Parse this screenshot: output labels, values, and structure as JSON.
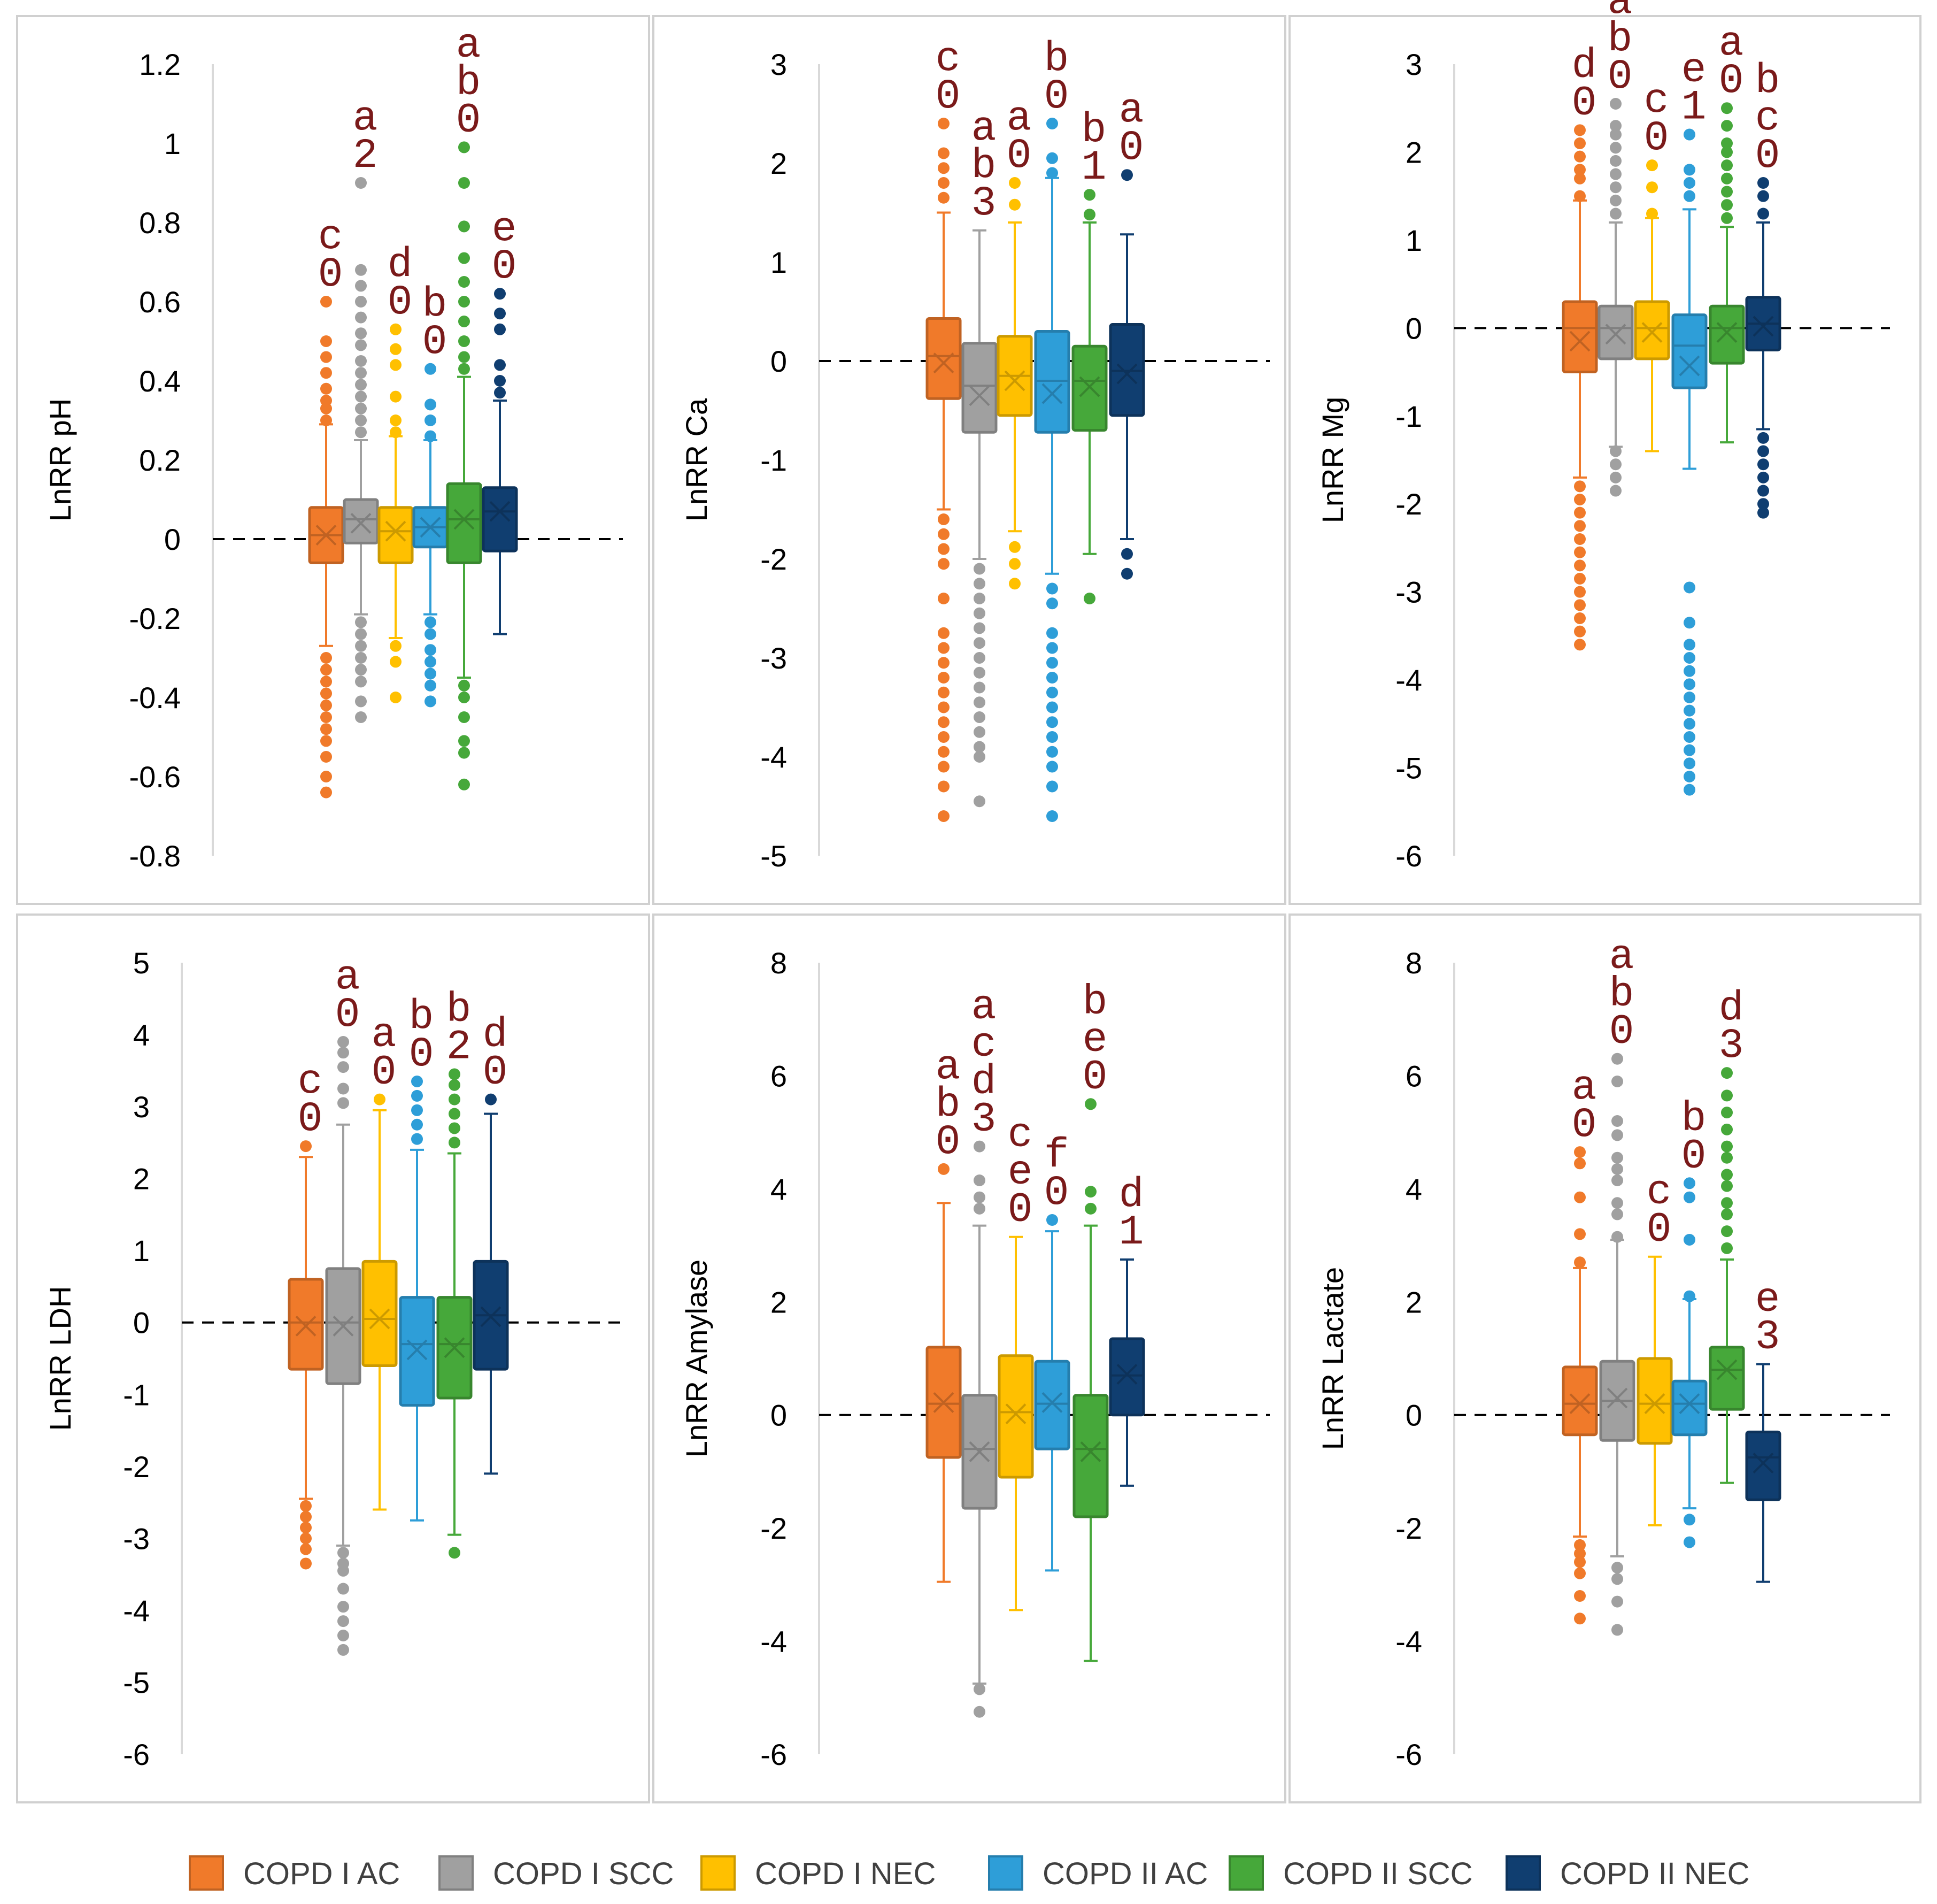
{
  "colors": {
    "COPD I AC": "#f07a2a",
    "COPD I SCC": "#a0a0a0",
    "COPD I NEC": "#ffc000",
    "COPD II AC": "#2e9ed8",
    "COPD II SCC": "#46a83a",
    "COPD II NEC": "#103e70",
    "letters": "#7a1a1a",
    "grid": "#d9d9d9",
    "panel_border": "#d0d0d0",
    "axis_text": "#000000"
  },
  "legend": {
    "position": "bottom-center",
    "entries": [
      "COPD I AC",
      "COPD I SCC",
      "COPD I NEC",
      "COPD II AC",
      "COPD II SCC",
      "COPD II NEC"
    ]
  },
  "chart_data": [
    {
      "type": "boxplot",
      "ylabel": "LnRR  pH",
      "ylim": [
        -0.8,
        1.2
      ],
      "yticks": [
        1.2,
        1,
        0.8,
        0.6,
        0.4,
        0.2,
        0,
        -0.2,
        -0.4,
        -0.6,
        -0.8
      ],
      "reference_line": 0,
      "series": [
        {
          "name": "COPD I AC",
          "q1": -0.06,
          "median": 0.01,
          "q3": 0.08,
          "mean": 0.01,
          "whisker_low": -0.27,
          "whisker_high": 0.29,
          "outliers": [
            0.3,
            0.33,
            0.35,
            0.38,
            0.42,
            0.46,
            0.5,
            0.6,
            -0.3,
            -0.33,
            -0.36,
            -0.39,
            -0.42,
            -0.45,
            -0.48,
            -0.51,
            -0.55,
            -0.6,
            -0.64
          ],
          "letters": "c\n0"
        },
        {
          "name": "COPD I SCC",
          "q1": -0.01,
          "median": 0.05,
          "q3": 0.1,
          "mean": 0.04,
          "whisker_low": -0.19,
          "whisker_high": 0.25,
          "outliers": [
            0.27,
            0.3,
            0.33,
            0.36,
            0.39,
            0.42,
            0.45,
            0.49,
            0.52,
            0.56,
            0.6,
            0.64,
            0.68,
            0.9,
            -0.21,
            -0.24,
            -0.27,
            -0.3,
            -0.33,
            -0.36,
            -0.41,
            -0.45
          ],
          "letters": "a\n2"
        },
        {
          "name": "COPD I NEC",
          "q1": -0.06,
          "median": 0.02,
          "q3": 0.08,
          "mean": 0.02,
          "whisker_low": -0.25,
          "whisker_high": 0.26,
          "outliers": [
            0.27,
            0.3,
            0.36,
            0.44,
            0.48,
            0.53,
            -0.27,
            -0.31,
            -0.4
          ],
          "letters": "d\n0"
        },
        {
          "name": "COPD II AC",
          "q1": -0.02,
          "median": 0.03,
          "q3": 0.08,
          "mean": 0.03,
          "whisker_low": -0.19,
          "whisker_high": 0.25,
          "outliers": [
            0.26,
            0.3,
            0.34,
            0.43,
            -0.21,
            -0.24,
            -0.28,
            -0.31,
            -0.34,
            -0.37,
            -0.41
          ],
          "letters": "b\n0"
        },
        {
          "name": "COPD II SCC",
          "q1": -0.06,
          "median": 0.05,
          "q3": 0.14,
          "mean": 0.05,
          "whisker_low": -0.35,
          "whisker_high": 0.41,
          "outliers": [
            0.43,
            0.46,
            0.5,
            0.55,
            0.6,
            0.65,
            0.71,
            0.79,
            0.9,
            0.99,
            -0.37,
            -0.4,
            -0.45,
            -0.51,
            -0.54,
            -0.62
          ],
          "letters": "a\nb\n0"
        },
        {
          "name": "COPD II NEC",
          "q1": -0.03,
          "median": 0.07,
          "q3": 0.13,
          "mean": 0.07,
          "whisker_low": -0.24,
          "whisker_high": 0.35,
          "outliers": [
            0.37,
            0.4,
            0.44,
            0.53,
            0.57,
            0.62
          ],
          "letters": "e\n0"
        }
      ]
    },
    {
      "type": "boxplot",
      "ylabel": "LnRR  Ca",
      "ylim": [
        -5,
        3
      ],
      "yticks": [
        3,
        2,
        1,
        0,
        -1,
        -2,
        -3,
        -4,
        -5
      ],
      "reference_line": 0,
      "series": [
        {
          "name": "COPD I AC",
          "q1": -0.38,
          "median": 0.05,
          "q3": 0.43,
          "mean": -0.02,
          "whisker_low": -1.5,
          "whisker_high": 1.5,
          "outliers": [
            1.65,
            1.8,
            1.95,
            2.1,
            2.4,
            -1.6,
            -1.75,
            -1.9,
            -2.05,
            -2.4,
            -2.75,
            -2.9,
            -3.05,
            -3.2,
            -3.35,
            -3.5,
            -3.65,
            -3.8,
            -3.95,
            -4.1,
            -4.3,
            -4.6
          ],
          "letters": "c\n0"
        },
        {
          "name": "COPD I SCC",
          "q1": -0.72,
          "median": -0.25,
          "q3": 0.18,
          "mean": -0.35,
          "whisker_low": -2.0,
          "whisker_high": 1.32,
          "outliers": [
            -2.1,
            -2.25,
            -2.4,
            -2.55,
            -2.7,
            -2.85,
            -3.0,
            -3.15,
            -3.3,
            -3.45,
            -3.6,
            -3.75,
            -3.9,
            -4.0,
            -4.45
          ],
          "letters": "a\nb\n3"
        },
        {
          "name": "COPD I NEC",
          "q1": -0.55,
          "median": -0.15,
          "q3": 0.25,
          "mean": -0.2,
          "whisker_low": -1.72,
          "whisker_high": 1.4,
          "outliers": [
            1.58,
            1.8,
            -1.88,
            -2.05,
            -2.25
          ],
          "letters": "a\n0"
        },
        {
          "name": "COPD II AC",
          "q1": -0.72,
          "median": -0.2,
          "q3": 0.3,
          "mean": -0.33,
          "whisker_low": -2.15,
          "whisker_high": 1.85,
          "outliers": [
            1.9,
            2.05,
            2.4,
            -2.3,
            -2.45,
            -2.75,
            -2.9,
            -3.05,
            -3.2,
            -3.35,
            -3.5,
            -3.65,
            -3.8,
            -3.95,
            -4.1,
            -4.3,
            -4.6
          ],
          "letters": "b\n0"
        },
        {
          "name": "COPD II SCC",
          "q1": -0.7,
          "median": -0.2,
          "q3": 0.15,
          "mean": -0.26,
          "whisker_low": -1.95,
          "whisker_high": 1.4,
          "outliers": [
            1.48,
            1.68,
            -2.4
          ],
          "letters": "b\n1"
        },
        {
          "name": "COPD II NEC",
          "q1": -0.55,
          "median": -0.1,
          "q3": 0.37,
          "mean": -0.13,
          "whisker_low": -1.8,
          "whisker_high": 1.28,
          "outliers": [
            1.88,
            -1.95,
            -2.15
          ],
          "letters": "a\n0"
        }
      ]
    },
    {
      "type": "boxplot",
      "ylabel": "LnRR  Mg",
      "ylim": [
        -6,
        3
      ],
      "yticks": [
        3,
        2,
        1,
        0,
        -1,
        -2,
        -3,
        -4,
        -5,
        -6
      ],
      "reference_line": 0,
      "series": [
        {
          "name": "COPD I AC",
          "q1": -0.5,
          "median": 0.0,
          "q3": 0.3,
          "mean": -0.15,
          "whisker_low": -1.7,
          "whisker_high": 1.45,
          "outliers": [
            1.5,
            1.7,
            1.8,
            1.95,
            2.1,
            2.25,
            -1.8,
            -1.95,
            -2.1,
            -2.25,
            -2.4,
            -2.55,
            -2.7,
            -2.85,
            -3.0,
            -3.15,
            -3.3,
            -3.45,
            -3.6
          ],
          "letters": "d\n0"
        },
        {
          "name": "COPD I SCC",
          "q1": -0.35,
          "median": 0.0,
          "q3": 0.25,
          "mean": -0.07,
          "whisker_low": -1.35,
          "whisker_high": 1.2,
          "outliers": [
            1.3,
            1.45,
            1.6,
            1.75,
            1.9,
            2.05,
            2.2,
            2.3,
            2.55,
            -1.4,
            -1.55,
            -1.7,
            -1.85
          ],
          "letters": "a\nb\n0"
        },
        {
          "name": "COPD I NEC",
          "q1": -0.35,
          "median": 0.0,
          "q3": 0.3,
          "mean": -0.05,
          "whisker_low": -1.4,
          "whisker_high": 1.25,
          "outliers": [
            1.3,
            1.6,
            1.85
          ],
          "letters": "c\n0"
        },
        {
          "name": "COPD II AC",
          "q1": -0.68,
          "median": -0.2,
          "q3": 0.15,
          "mean": -0.43,
          "whisker_low": -1.6,
          "whisker_high": 1.35,
          "outliers": [
            1.5,
            1.65,
            1.8,
            2.2,
            -2.95,
            -3.35,
            -3.6,
            -3.75,
            -3.9,
            -4.05,
            -4.2,
            -4.35,
            -4.5,
            -4.65,
            -4.8,
            -4.95,
            -5.1,
            -5.25
          ],
          "letters": "e\n1"
        },
        {
          "name": "COPD II SCC",
          "q1": -0.4,
          "median": 0.0,
          "q3": 0.25,
          "mean": -0.05,
          "whisker_low": -1.3,
          "whisker_high": 1.15,
          "outliers": [
            1.25,
            1.4,
            1.55,
            1.7,
            1.85,
            2.0,
            2.1,
            2.3,
            2.5
          ],
          "letters": "a\n0"
        },
        {
          "name": "COPD II NEC",
          "q1": -0.25,
          "median": 0.05,
          "q3": 0.35,
          "mean": 0.02,
          "whisker_low": -1.15,
          "whisker_high": 1.2,
          "outliers": [
            1.3,
            1.5,
            1.65,
            -1.25,
            -1.4,
            -1.55,
            -1.7,
            -1.85,
            -2.0,
            -2.1
          ],
          "letters": "b\nc\n0"
        }
      ]
    },
    {
      "type": "boxplot",
      "ylabel": "LnRR  LDH",
      "ylim": [
        -6,
        5
      ],
      "yticks": [
        5,
        4,
        3,
        2,
        1,
        0,
        -1,
        -2,
        -3,
        -4,
        -5,
        -6
      ],
      "reference_line": 0,
      "series": [
        {
          "name": "COPD I AC",
          "q1": -0.65,
          "median": 0.0,
          "q3": 0.6,
          "mean": -0.05,
          "whisker_low": -2.45,
          "whisker_high": 2.3,
          "outliers": [
            2.45,
            -2.55,
            -2.7,
            -2.85,
            -3.0,
            -3.15,
            -3.35
          ],
          "letters": "c\n0"
        },
        {
          "name": "COPD I SCC",
          "q1": -0.85,
          "median": 0.0,
          "q3": 0.75,
          "mean": -0.05,
          "whisker_low": -3.1,
          "whisker_high": 2.75,
          "outliers": [
            3.05,
            3.25,
            3.55,
            3.75,
            3.9,
            -3.2,
            -3.35,
            -3.45,
            -3.7,
            -3.95,
            -4.15,
            -4.35,
            -4.55
          ],
          "letters": "a\n0"
        },
        {
          "name": "COPD I NEC",
          "q1": -0.6,
          "median": 0.05,
          "q3": 0.85,
          "mean": 0.05,
          "whisker_low": -2.6,
          "whisker_high": 2.95,
          "outliers": [
            3.1
          ],
          "letters": "a\n0"
        },
        {
          "name": "COPD II AC",
          "q1": -1.15,
          "median": -0.3,
          "q3": 0.35,
          "mean": -0.38,
          "whisker_low": -2.75,
          "whisker_high": 2.4,
          "outliers": [
            2.55,
            2.75,
            2.95,
            3.15,
            3.35
          ],
          "letters": "b\n0"
        },
        {
          "name": "COPD II SCC",
          "q1": -1.05,
          "median": -0.3,
          "q3": 0.35,
          "mean": -0.35,
          "whisker_low": -2.95,
          "whisker_high": 2.35,
          "outliers": [
            2.5,
            2.7,
            2.9,
            3.1,
            3.3,
            3.45,
            -3.2
          ],
          "letters": "b\n2"
        },
        {
          "name": "COPD II NEC",
          "q1": -0.65,
          "median": 0.1,
          "q3": 0.85,
          "mean": 0.08,
          "whisker_low": -2.1,
          "whisker_high": 2.9,
          "outliers": [
            3.1
          ],
          "letters": "d\n0"
        }
      ]
    },
    {
      "type": "boxplot",
      "ylabel": "LnRR  Amylase",
      "ylim": [
        -6,
        8
      ],
      "yticks": [
        8,
        6,
        4,
        2,
        0,
        -2,
        -4,
        -6
      ],
      "reference_line": 0,
      "series": [
        {
          "name": "COPD I AC",
          "q1": -0.75,
          "median": 0.2,
          "q3": 1.2,
          "mean": 0.22,
          "whisker_low": -2.95,
          "whisker_high": 3.75,
          "outliers": [
            4.35
          ],
          "letters": "a\nb\n0"
        },
        {
          "name": "COPD I SCC",
          "q1": -1.65,
          "median": -0.6,
          "q3": 0.35,
          "mean": -0.65,
          "whisker_low": -4.75,
          "whisker_high": 3.35,
          "outliers": [
            3.65,
            3.85,
            4.15,
            4.75,
            -4.85,
            -5.25
          ],
          "letters": "a\nc\nd\n3"
        },
        {
          "name": "COPD I NEC",
          "q1": -1.1,
          "median": 0.05,
          "q3": 1.05,
          "mean": 0.02,
          "whisker_low": -3.45,
          "whisker_high": 3.15,
          "outliers": [],
          "letters": "c\ne\n0"
        },
        {
          "name": "COPD II AC",
          "q1": -0.6,
          "median": 0.2,
          "q3": 0.95,
          "mean": 0.22,
          "whisker_low": -2.75,
          "whisker_high": 3.25,
          "outliers": [
            3.45
          ],
          "letters": "f\n0"
        },
        {
          "name": "COPD II SCC",
          "q1": -1.8,
          "median": -0.6,
          "q3": 0.35,
          "mean": -0.65,
          "whisker_low": -4.35,
          "whisker_high": 3.35,
          "outliers": [
            3.65,
            3.95,
            5.5
          ],
          "letters": "b\ne\n0"
        },
        {
          "name": "COPD II NEC",
          "q1": 0.0,
          "median": 0.7,
          "q3": 1.35,
          "mean": 0.72,
          "whisker_low": -1.25,
          "whisker_high": 2.75,
          "outliers": [],
          "letters": "d\n1"
        }
      ]
    },
    {
      "type": "boxplot",
      "ylabel": "LnRR  Lactate",
      "ylim": [
        -6,
        8
      ],
      "yticks": [
        8,
        6,
        4,
        2,
        0,
        -2,
        -4,
        -6
      ],
      "reference_line": 0,
      "series": [
        {
          "name": "COPD I AC",
          "q1": -0.35,
          "median": 0.2,
          "q3": 0.85,
          "mean": 0.2,
          "whisker_low": -2.15,
          "whisker_high": 2.6,
          "outliers": [
            2.7,
            3.2,
            3.85,
            4.45,
            4.65,
            -2.3,
            -2.45,
            -2.6,
            -2.8,
            -3.2,
            -3.6
          ],
          "letters": "a\n0"
        },
        {
          "name": "COPD I SCC",
          "q1": -0.45,
          "median": 0.25,
          "q3": 0.95,
          "mean": 0.3,
          "whisker_low": -2.5,
          "whisker_high": 3.1,
          "outliers": [
            3.15,
            3.55,
            3.75,
            4.15,
            4.35,
            4.55,
            4.95,
            5.2,
            5.9,
            6.3,
            -2.7,
            -2.9,
            -3.3,
            -3.8
          ],
          "letters": "a\nb\n0"
        },
        {
          "name": "COPD I NEC",
          "q1": -0.5,
          "median": 0.2,
          "q3": 1.0,
          "mean": 0.2,
          "whisker_low": -1.95,
          "whisker_high": 2.8,
          "outliers": [],
          "letters": "c\n0"
        },
        {
          "name": "COPD II AC",
          "q1": -0.35,
          "median": 0.2,
          "q3": 0.6,
          "mean": 0.2,
          "whisker_low": -1.65,
          "whisker_high": 2.05,
          "outliers": [
            2.1,
            3.1,
            3.85,
            4.1,
            -1.85,
            -2.25
          ],
          "letters": "b\n0"
        },
        {
          "name": "COPD II SCC",
          "q1": 0.1,
          "median": 0.8,
          "q3": 1.2,
          "mean": 0.8,
          "whisker_low": -1.2,
          "whisker_high": 2.75,
          "outliers": [
            2.95,
            3.25,
            3.55,
            3.75,
            4.05,
            4.25,
            4.55,
            4.75,
            5.05,
            5.35,
            5.65,
            6.05
          ],
          "letters": "d\n3"
        },
        {
          "name": "COPD II NEC",
          "q1": -1.5,
          "median": -0.75,
          "q3": -0.3,
          "mean": -0.85,
          "whisker_low": -2.95,
          "whisker_high": 0.9,
          "outliers": [],
          "letters": "e\n3"
        }
      ]
    }
  ]
}
